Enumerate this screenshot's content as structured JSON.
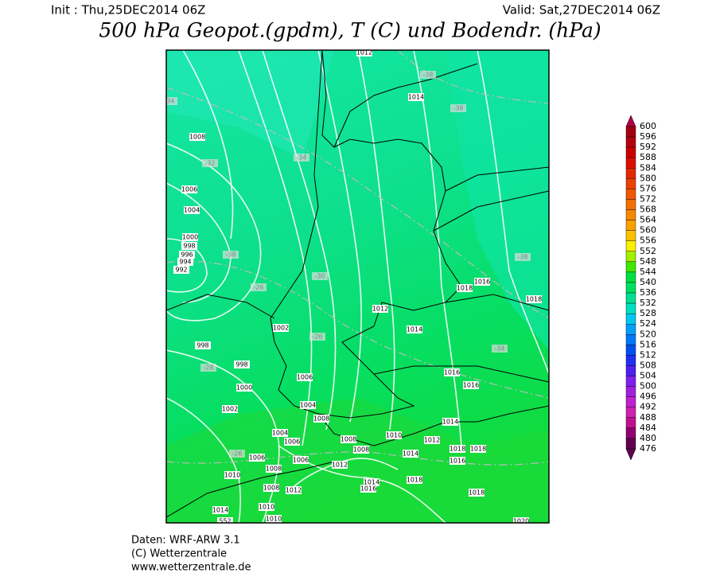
{
  "header": {
    "init": "Init : Thu,25DEC2014 06Z",
    "valid": "Valid: Sat,27DEC2014 06Z",
    "title": "500 hPa Geopot.(gpdm), T (C) und Bodendr. (hPa)"
  },
  "map": {
    "labels": [
      1012,
      -38,
      1014,
      -38,
      -34,
      1008,
      -32,
      -34,
      1006,
      1004,
      1000,
      998,
      996,
      994,
      992,
      -38,
      -30,
      -26,
      -38,
      1016,
      1018,
      1018,
      1012,
      1014,
      1002,
      -26,
      998,
      -34,
      -28,
      998,
      1016,
      1006,
      1000,
      1016,
      1004,
      1002,
      1008,
      1014,
      1004,
      1006,
      1008,
      1010,
      1012,
      1008,
      1014,
      1018,
      1018,
      1016,
      -26,
      1006,
      1006,
      1012,
      1008,
      1010,
      1018,
      1014,
      1016,
      1018,
      1008,
      1012,
      1014,
      1010,
      1010,
      1020,
      552
    ]
  },
  "colorbar": {
    "levels": [
      600,
      596,
      592,
      588,
      584,
      580,
      576,
      572,
      568,
      564,
      560,
      556,
      552,
      548,
      544,
      540,
      536,
      532,
      528,
      524,
      520,
      516,
      512,
      508,
      504,
      500,
      496,
      492,
      488,
      484,
      480,
      476
    ],
    "colors": [
      "#b0004a",
      "#a00010",
      "#b40010",
      "#c80000",
      "#dc1000",
      "#e42800",
      "#ec4000",
      "#f05800",
      "#f47000",
      "#f88800",
      "#fca000",
      "#fcc000",
      "#f8f000",
      "#a0f000",
      "#40e800",
      "#00e040",
      "#00e060",
      "#00e090",
      "#00e0c0",
      "#00c8f0",
      "#00a0f8",
      "#0078f8",
      "#0050f0",
      "#2030f0",
      "#5020f0",
      "#8020f0",
      "#a020e0",
      "#c020d0",
      "#d020b0",
      "#c01090",
      "#900070",
      "#600050"
    ]
  },
  "footer": [
    "Daten: WRF-ARW 3.1",
    "(C) Wetterzentrale",
    "www.wetterzentrale.de"
  ]
}
